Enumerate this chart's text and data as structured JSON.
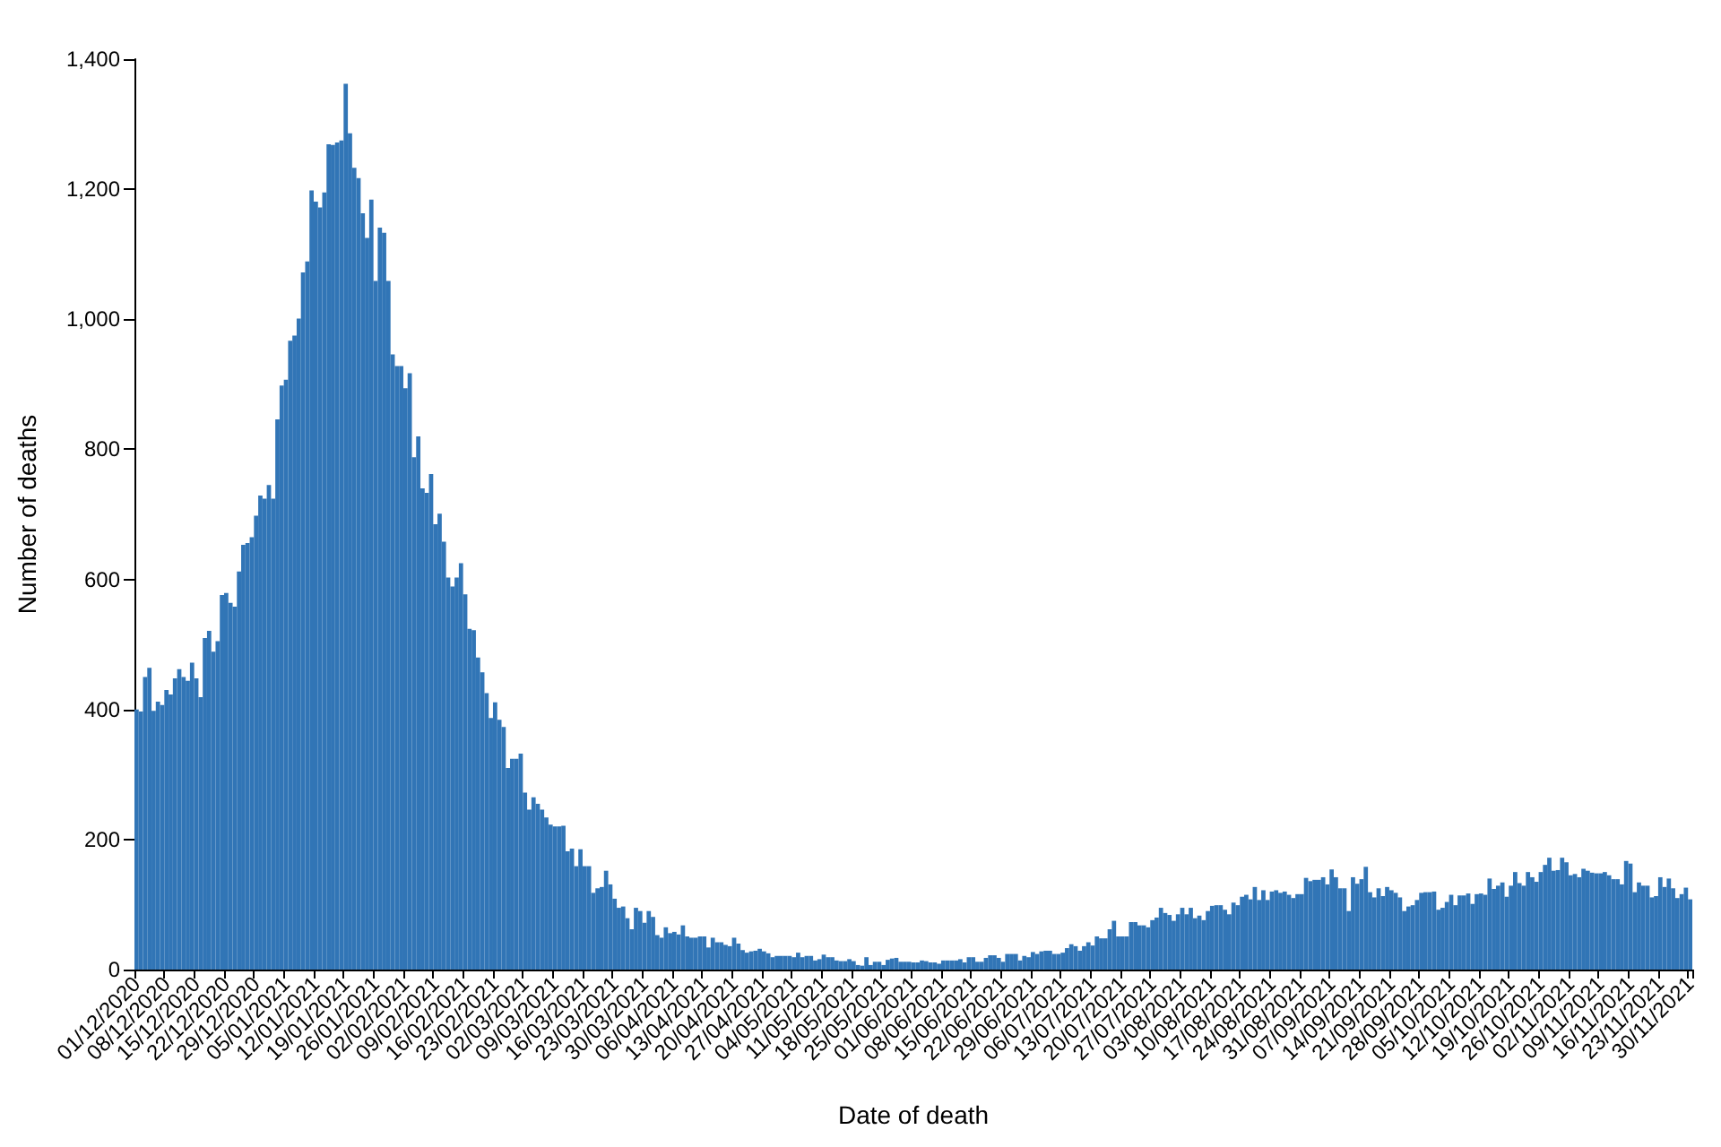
{
  "chart_data": {
    "type": "bar",
    "xlabel": "Date of death",
    "ylabel": "Number of deaths",
    "color": "#3175b6",
    "ylim": [
      0,
      1400
    ],
    "yticks": [
      0,
      200,
      400,
      600,
      800,
      {
        "value": 1000,
        "label": "1,000"
      },
      {
        "value": 1200,
        "label": "1,200"
      },
      {
        "value": 1400,
        "label": "1,400"
      }
    ],
    "categories": [
      "01/12/2020",
      null,
      null,
      null,
      null,
      null,
      null,
      "08/12/2020",
      null,
      null,
      null,
      null,
      null,
      null,
      "15/12/2020",
      null,
      null,
      null,
      null,
      null,
      null,
      "22/12/2020",
      null,
      null,
      null,
      null,
      null,
      null,
      "29/12/2020",
      null,
      null,
      null,
      null,
      null,
      null,
      "05/01/2021",
      null,
      null,
      null,
      null,
      null,
      null,
      "12/01/2021",
      null,
      null,
      null,
      null,
      null,
      null,
      "19/01/2021",
      null,
      null,
      null,
      null,
      null,
      null,
      "26/01/2021",
      null,
      null,
      null,
      null,
      null,
      null,
      "02/02/2021",
      null,
      null,
      null,
      null,
      null,
      null,
      "09/02/2021",
      null,
      null,
      null,
      null,
      null,
      null,
      "16/02/2021",
      null,
      null,
      null,
      null,
      null,
      null,
      "23/02/2021",
      null,
      null,
      null,
      null,
      null,
      null,
      "02/03/2021",
      null,
      null,
      null,
      null,
      null,
      null,
      "09/03/2021",
      null,
      null,
      null,
      null,
      null,
      null,
      "16/03/2021",
      null,
      null,
      null,
      null,
      null,
      null,
      "23/03/2021",
      null,
      null,
      null,
      null,
      null,
      null,
      "30/03/2021",
      null,
      null,
      null,
      null,
      null,
      null,
      "06/04/2021",
      null,
      null,
      null,
      null,
      null,
      null,
      "13/04/2021",
      null,
      null,
      null,
      null,
      null,
      null,
      "20/04/2021",
      null,
      null,
      null,
      null,
      null,
      null,
      "27/04/2021",
      null,
      null,
      null,
      null,
      null,
      null,
      "04/05/2021",
      null,
      null,
      null,
      null,
      null,
      null,
      "11/05/2021",
      null,
      null,
      null,
      null,
      null,
      null,
      "18/05/2021",
      null,
      null,
      null,
      null,
      null,
      null,
      "25/05/2021",
      null,
      null,
      null,
      null,
      null,
      null,
      "01/06/2021",
      null,
      null,
      null,
      null,
      null,
      null,
      "08/06/2021",
      null,
      null,
      null,
      null,
      null,
      null,
      "15/06/2021",
      null,
      null,
      null,
      null,
      null,
      null,
      "22/06/2021",
      null,
      null,
      null,
      null,
      null,
      null,
      "29/06/2021",
      null,
      null,
      null,
      null,
      null,
      null,
      "06/07/2021",
      null,
      null,
      null,
      null,
      null,
      null,
      "13/07/2021",
      null,
      null,
      null,
      null,
      null,
      null,
      "20/07/2021",
      null,
      null,
      null,
      null,
      null,
      null,
      "27/07/2021",
      null,
      null,
      null,
      null,
      null,
      null,
      "03/08/2021",
      null,
      null,
      null,
      null,
      null,
      null,
      "10/08/2021",
      null,
      null,
      null,
      null,
      null,
      null,
      "17/08/2021",
      null,
      null,
      null,
      null,
      null,
      null,
      "24/08/2021",
      null,
      null,
      null,
      null,
      null,
      null,
      "31/08/2021",
      null,
      null,
      null,
      null,
      null,
      null,
      "07/09/2021",
      null,
      null,
      null,
      null,
      null,
      null,
      "14/09/2021",
      null,
      null,
      null,
      null,
      null,
      null,
      "21/09/2021",
      null,
      null,
      null,
      null,
      null,
      null,
      "28/09/2021",
      null,
      null,
      null,
      null,
      null,
      null,
      "05/10/2021",
      null,
      null,
      null,
      null,
      null,
      null,
      "12/10/2021",
      null,
      null,
      null,
      null,
      null,
      null,
      "19/10/2021",
      null,
      null,
      null,
      null,
      null,
      null,
      "26/10/2021",
      null,
      null,
      null,
      null,
      null,
      null,
      "02/11/2021",
      null,
      null,
      null,
      null,
      null,
      null,
      "09/11/2021",
      null,
      null,
      null,
      null,
      null,
      null,
      "16/11/2021",
      null,
      null,
      null,
      null,
      null,
      null,
      "23/11/2021",
      null,
      null,
      null,
      null,
      null,
      null,
      "30/11/2021"
    ],
    "values": [
      400,
      397,
      450,
      464,
      398,
      412,
      407,
      430,
      423,
      448,
      462,
      450,
      444,
      472,
      448,
      419,
      510,
      521,
      489,
      505,
      576,
      579,
      564,
      558,
      612,
      653,
      656,
      665,
      698,
      729,
      724,
      745,
      724,
      846,
      898,
      907,
      967,
      975,
      1001,
      1072,
      1089,
      1198,
      1181,
      1172,
      1195,
      1269,
      1268,
      1272,
      1275,
      1362,
      1286,
      1233,
      1217,
      1163,
      1125,
      1184,
      1059,
      1141,
      1133,
      1059,
      946,
      928,
      928,
      894,
      917,
      788,
      820,
      740,
      733,
      762,
      685,
      701,
      658,
      603,
      589,
      603,
      625,
      577,
      524,
      522,
      480,
      457,
      425,
      387,
      411,
      384,
      373,
      310,
      324,
      324,
      332,
      272,
      246,
      265,
      255,
      246,
      234,
      223,
      220,
      220,
      221,
      182,
      186,
      159,
      185,
      159,
      159,
      118,
      125,
      127,
      152,
      131,
      109,
      95,
      97,
      79,
      62,
      95,
      90,
      72,
      90,
      81,
      53,
      49,
      65,
      56,
      58,
      54,
      68,
      51,
      49,
      49,
      51,
      51,
      34,
      49,
      42,
      42,
      38,
      36,
      49,
      40,
      30,
      26,
      28,
      29,
      32,
      28,
      25,
      19,
      21,
      21,
      21,
      21,
      19,
      26,
      19,
      21,
      21,
      14,
      16,
      23,
      19,
      19,
      14,
      13,
      13,
      16,
      13,
      7,
      6,
      19,
      7,
      12,
      12,
      7,
      15,
      17,
      18,
      12,
      12,
      12,
      11,
      11,
      14,
      13,
      11,
      11,
      9,
      14,
      14,
      14,
      14,
      16,
      11,
      19,
      19,
      12,
      12,
      18,
      22,
      22,
      18,
      12,
      24,
      24,
      24,
      14,
      21,
      19,
      27,
      24,
      28,
      29,
      29,
      24,
      24,
      26,
      33,
      39,
      36,
      29,
      36,
      42,
      37,
      51,
      48,
      48,
      62,
      75,
      51,
      51,
      51,
      73,
      73,
      68,
      68,
      65,
      76,
      80,
      95,
      87,
      84,
      75,
      85,
      95,
      85,
      95,
      79,
      83,
      76,
      90,
      98,
      99,
      99,
      92,
      85,
      103,
      99,
      112,
      115,
      108,
      127,
      107,
      122,
      107,
      120,
      122,
      118,
      120,
      115,
      110,
      116,
      116,
      141,
      136,
      138,
      138,
      142,
      131,
      154,
      142,
      125,
      125,
      90,
      142,
      132,
      139,
      158,
      119,
      111,
      125,
      113,
      127,
      122,
      118,
      111,
      90,
      97,
      99,
      107,
      118,
      119,
      119,
      120,
      92,
      95,
      104,
      115,
      99,
      114,
      114,
      117,
      101,
      116,
      117,
      115,
      140,
      124,
      129,
      134,
      112,
      129,
      150,
      133,
      129,
      150,
      142,
      135,
      150,
      161,
      172,
      152,
      153,
      172,
      165,
      145,
      147,
      142,
      155,
      152,
      149,
      148,
      148,
      150,
      145,
      139,
      139,
      131,
      167,
      163,
      119,
      134,
      129,
      129,
      111,
      113,
      142,
      127,
      140,
      125,
      110,
      116,
      126,
      108
    ]
  }
}
